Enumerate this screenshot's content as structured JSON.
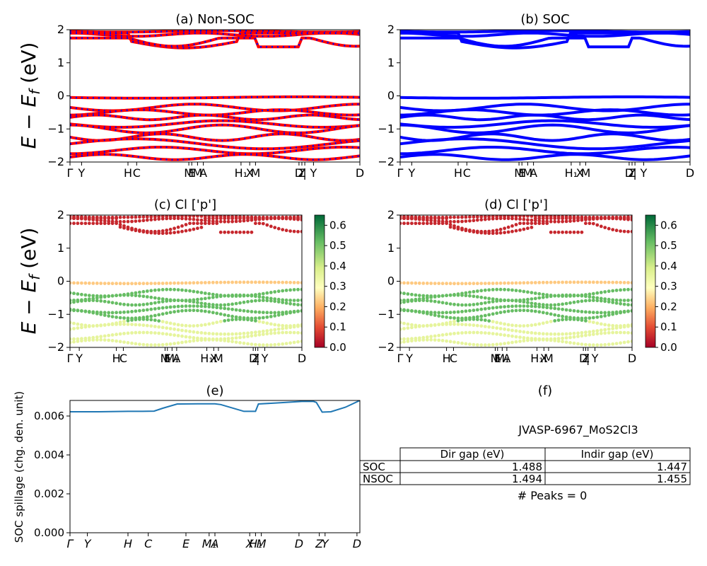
{
  "colors": {
    "nonsoc_line": "#ff0000",
    "nonsoc_dash": "#0000ff",
    "soc_line": "#0000ff",
    "spillage_line": "#1f77b4"
  },
  "chart_data": [
    {
      "id": "a",
      "type": "line",
      "title": "(a) Non-SOC",
      "ylabel": "E − E_f (eV)",
      "ylim": [
        -2,
        2
      ],
      "yticks": [
        "−2",
        "−1",
        "0",
        "1",
        "2"
      ],
      "xticks": [
        "Γ",
        "Y",
        "H",
        "C",
        "M",
        "E",
        "M",
        "A",
        "H₁",
        "X",
        "M",
        "D",
        "Z",
        "|",
        "Y",
        "D"
      ],
      "kpath": [
        0.0,
        0.04,
        0.2,
        0.23,
        0.41,
        0.42,
        0.44,
        0.46,
        0.59,
        0.62,
        0.64,
        0.79,
        0.8,
        0.81,
        0.84,
        1.0
      ],
      "series_style": "red line with blue dashes"
    },
    {
      "id": "b",
      "type": "line",
      "title": "(b) SOC",
      "ylim": [
        -2,
        2
      ],
      "yticks": [
        "−2",
        "−1",
        "0",
        "1",
        "2"
      ],
      "xticks": [
        "Γ",
        "Y",
        "H",
        "C",
        "M",
        "E",
        "M",
        "A",
        "H₁",
        "X",
        "M",
        "D",
        "Z",
        "|",
        "Y",
        "D"
      ],
      "series_style": "blue line"
    },
    {
      "id": "c",
      "type": "scatter",
      "title": "(c)  Cl ['p']",
      "ylabel": "E − E_f (eV)",
      "ylim": [
        -2,
        2
      ],
      "yticks": [
        "−2",
        "−1",
        "0",
        "1",
        "2"
      ],
      "xticks": [
        "Γ",
        "Y",
        "H",
        "C",
        "M",
        "E",
        "M₁",
        "A",
        "H₁",
        "X",
        "M",
        "D",
        "Z",
        "|",
        "Y",
        "D"
      ],
      "colorbar": {
        "range": [
          0.0,
          0.65
        ],
        "ticks": [
          "0.0",
          "0.1",
          "0.2",
          "0.3",
          "0.4",
          "0.5",
          "0.6"
        ],
        "colormap": "RdYlGn"
      }
    },
    {
      "id": "d",
      "type": "scatter",
      "title": "(d) Cl ['p']",
      "ylim": [
        -2,
        2
      ],
      "yticks": [
        "−2",
        "−1",
        "0",
        "1",
        "2"
      ],
      "xticks": [
        "Γ",
        "Y",
        "H",
        "C",
        "M",
        "E",
        "M₁",
        "A",
        "H₁",
        "X",
        "M",
        "D",
        "Z",
        "|",
        "Y",
        "D"
      ],
      "colorbar": {
        "range": [
          0.0,
          0.65
        ],
        "ticks": [
          "0.0",
          "0.1",
          "0.2",
          "0.3",
          "0.4",
          "0.5",
          "0.6"
        ],
        "colormap": "RdYlGn"
      }
    },
    {
      "id": "e",
      "type": "line",
      "title": "(e)",
      "ylabel": "SOC spillage (chg. den. unit)",
      "ylim": [
        0.0,
        0.0068
      ],
      "yticks": [
        "0.000",
        "0.002",
        "0.004",
        "0.006"
      ],
      "xticks": [
        "Γ",
        "Y",
        "H",
        "C",
        "E",
        "M₁",
        "A",
        "X",
        "H₁",
        "M",
        "D",
        "Z",
        "Y",
        "D"
      ],
      "x": [
        0.0,
        0.1,
        0.2,
        0.25,
        0.29,
        0.32,
        0.37,
        0.44,
        0.5,
        0.52,
        0.6,
        0.64,
        0.65,
        0.71,
        0.8,
        0.84,
        0.85,
        0.87,
        0.9,
        0.95,
        1.0
      ],
      "y": [
        0.00622,
        0.00622,
        0.00624,
        0.00624,
        0.00625,
        0.0064,
        0.00662,
        0.00663,
        0.00663,
        0.00659,
        0.00624,
        0.00624,
        0.00662,
        0.00667,
        0.00675,
        0.00675,
        0.0067,
        0.0062,
        0.00622,
        0.00645,
        0.0068
      ]
    }
  ],
  "panel_f": {
    "title": "(f)",
    "material": "JVASP-6967_MoS2Cl3",
    "table": {
      "headers": [
        "",
        "Dir gap (eV)",
        "Indir gap (eV)"
      ],
      "rows": [
        {
          "label": "SOC",
          "dir": "1.488",
          "indir": "1.447"
        },
        {
          "label": "NSOC",
          "dir": "1.494",
          "indir": "1.455"
        }
      ]
    },
    "peaks_text": "# Peaks = 0"
  }
}
